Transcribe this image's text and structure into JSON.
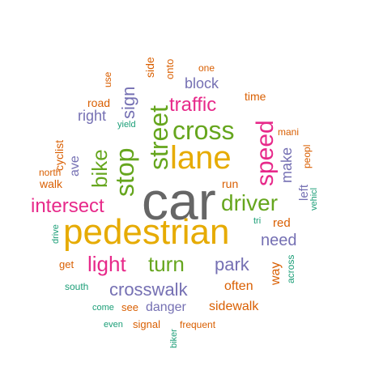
{
  "palette": {
    "teal": "#1b9e77",
    "orange": "#d95f02",
    "purple": "#7570b3",
    "magenta": "#e7298a",
    "green": "#66a61e",
    "gold": "#e6ab02",
    "brown": "#a6761d",
    "gray": "#666666"
  },
  "words": [
    {
      "text": "car",
      "weight": 100,
      "color": "gray"
    },
    {
      "text": "pedestrian",
      "weight": 90,
      "color": "gold"
    },
    {
      "text": "lane",
      "weight": 60,
      "color": "gold"
    },
    {
      "text": "street",
      "weight": 48,
      "color": "green"
    },
    {
      "text": "cross",
      "weight": 48,
      "color": "green"
    },
    {
      "text": "stop",
      "weight": 44,
      "color": "green"
    },
    {
      "text": "speed",
      "weight": 44,
      "color": "magenta"
    },
    {
      "text": "intersect",
      "weight": 40,
      "color": "magenta"
    },
    {
      "text": "driver",
      "weight": 40,
      "color": "green"
    },
    {
      "text": "light",
      "weight": 38,
      "color": "magenta"
    },
    {
      "text": "turn",
      "weight": 38,
      "color": "green"
    },
    {
      "text": "bike",
      "weight": 36,
      "color": "green"
    },
    {
      "text": "traffic",
      "weight": 36,
      "color": "magenta"
    },
    {
      "text": "crosswalk",
      "weight": 34,
      "color": "purple"
    },
    {
      "text": "park",
      "weight": 32,
      "color": "purple"
    },
    {
      "text": "sign",
      "weight": 28,
      "color": "purple"
    },
    {
      "text": "need",
      "weight": 26,
      "color": "purple"
    },
    {
      "text": "block",
      "weight": 24,
      "color": "purple"
    },
    {
      "text": "make",
      "weight": 24,
      "color": "purple"
    },
    {
      "text": "right",
      "weight": 24,
      "color": "purple"
    },
    {
      "text": "danger",
      "weight": 22,
      "color": "purple"
    },
    {
      "text": "sidewalk",
      "weight": 22,
      "color": "orange"
    },
    {
      "text": "ave",
      "weight": 22,
      "color": "purple"
    },
    {
      "text": "often",
      "weight": 20,
      "color": "orange"
    },
    {
      "text": "way",
      "weight": 20,
      "color": "orange"
    },
    {
      "text": "red",
      "weight": 20,
      "color": "orange"
    },
    {
      "text": "left",
      "weight": 18,
      "color": "purple"
    },
    {
      "text": "side",
      "weight": 18,
      "color": "orange"
    },
    {
      "text": "onto",
      "weight": 17,
      "color": "orange"
    },
    {
      "text": "road",
      "weight": 17,
      "color": "orange"
    },
    {
      "text": "run",
      "weight": 17,
      "color": "orange"
    },
    {
      "text": "time",
      "weight": 17,
      "color": "orange"
    },
    {
      "text": "signal",
      "weight": 16,
      "color": "orange"
    },
    {
      "text": "cyclist",
      "weight": 16,
      "color": "orange"
    },
    {
      "text": "walk",
      "weight": 16,
      "color": "orange"
    },
    {
      "text": "see",
      "weight": 15,
      "color": "orange"
    },
    {
      "text": "get",
      "weight": 14,
      "color": "orange"
    },
    {
      "text": "one",
      "weight": 14,
      "color": "orange"
    },
    {
      "text": "mani",
      "weight": 14,
      "color": "orange"
    },
    {
      "text": "north",
      "weight": 14,
      "color": "orange"
    },
    {
      "text": "peopl",
      "weight": 14,
      "color": "orange"
    },
    {
      "text": "across",
      "weight": 13,
      "color": "teal"
    },
    {
      "text": "frequent",
      "weight": 13,
      "color": "orange"
    },
    {
      "text": "use",
      "weight": 13,
      "color": "orange"
    },
    {
      "text": "south",
      "weight": 13,
      "color": "teal"
    },
    {
      "text": "vehicl",
      "weight": 12,
      "color": "teal"
    },
    {
      "text": "come",
      "weight": 12,
      "color": "teal"
    },
    {
      "text": "even",
      "weight": 12,
      "color": "teal"
    },
    {
      "text": "yield",
      "weight": 12,
      "color": "teal"
    },
    {
      "text": "drive",
      "weight": 11,
      "color": "teal"
    },
    {
      "text": "tri",
      "weight": 11,
      "color": "teal"
    },
    {
      "text": "biker",
      "weight": 11,
      "color": "teal"
    }
  ]
}
